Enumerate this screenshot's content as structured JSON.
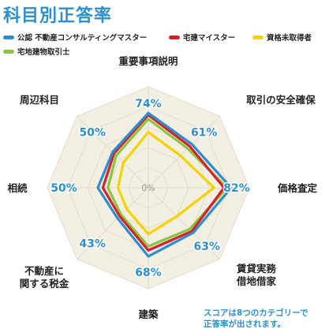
{
  "title": "科目別正答率",
  "legend": [
    {
      "label": "公認 不動産コンサルティングマスター",
      "color": "#2c8fd0"
    },
    {
      "label": "宅建マイスター",
      "color": "#d8202a"
    },
    {
      "label": "資格未取得者",
      "color": "#f5d300"
    },
    {
      "label": "宅地建物取引士",
      "color": "#8cc63f"
    }
  ],
  "note": "スコアは8つのカテゴリーで\n正答率が出されます。",
  "chart_data": {
    "type": "radar",
    "title": "科目別正答率",
    "categories": [
      "重要事項説明",
      "取引の安全確保",
      "価格査定",
      "賃貸実務\n借地借家",
      "建築",
      "不動産に\n関する税金",
      "相続",
      "周辺科目"
    ],
    "category_score_labels": [
      "74%",
      "61%",
      "82%",
      "63%",
      "68%",
      "43%",
      "50%",
      "50%"
    ],
    "center_label": "0%",
    "range": [
      0,
      100
    ],
    "grid_levels": 5,
    "series": [
      {
        "name": "公認 不動産コンサルティングマスター",
        "color": "#2c8fd0",
        "values": [
          74,
          61,
          82,
          63,
          68,
          43,
          50,
          50
        ]
      },
      {
        "name": "宅建マイスター",
        "color": "#d8202a",
        "values": [
          72,
          58,
          75,
          61,
          62,
          40,
          45,
          48
        ]
      },
      {
        "name": "宅地建物取引士",
        "color": "#8cc63f",
        "values": [
          68,
          55,
          78,
          58,
          58,
          38,
          40,
          45
        ]
      },
      {
        "name": "資格未取得者",
        "color": "#f5d300",
        "values": [
          55,
          45,
          65,
          40,
          46,
          30,
          30,
          35
        ]
      }
    ]
  }
}
